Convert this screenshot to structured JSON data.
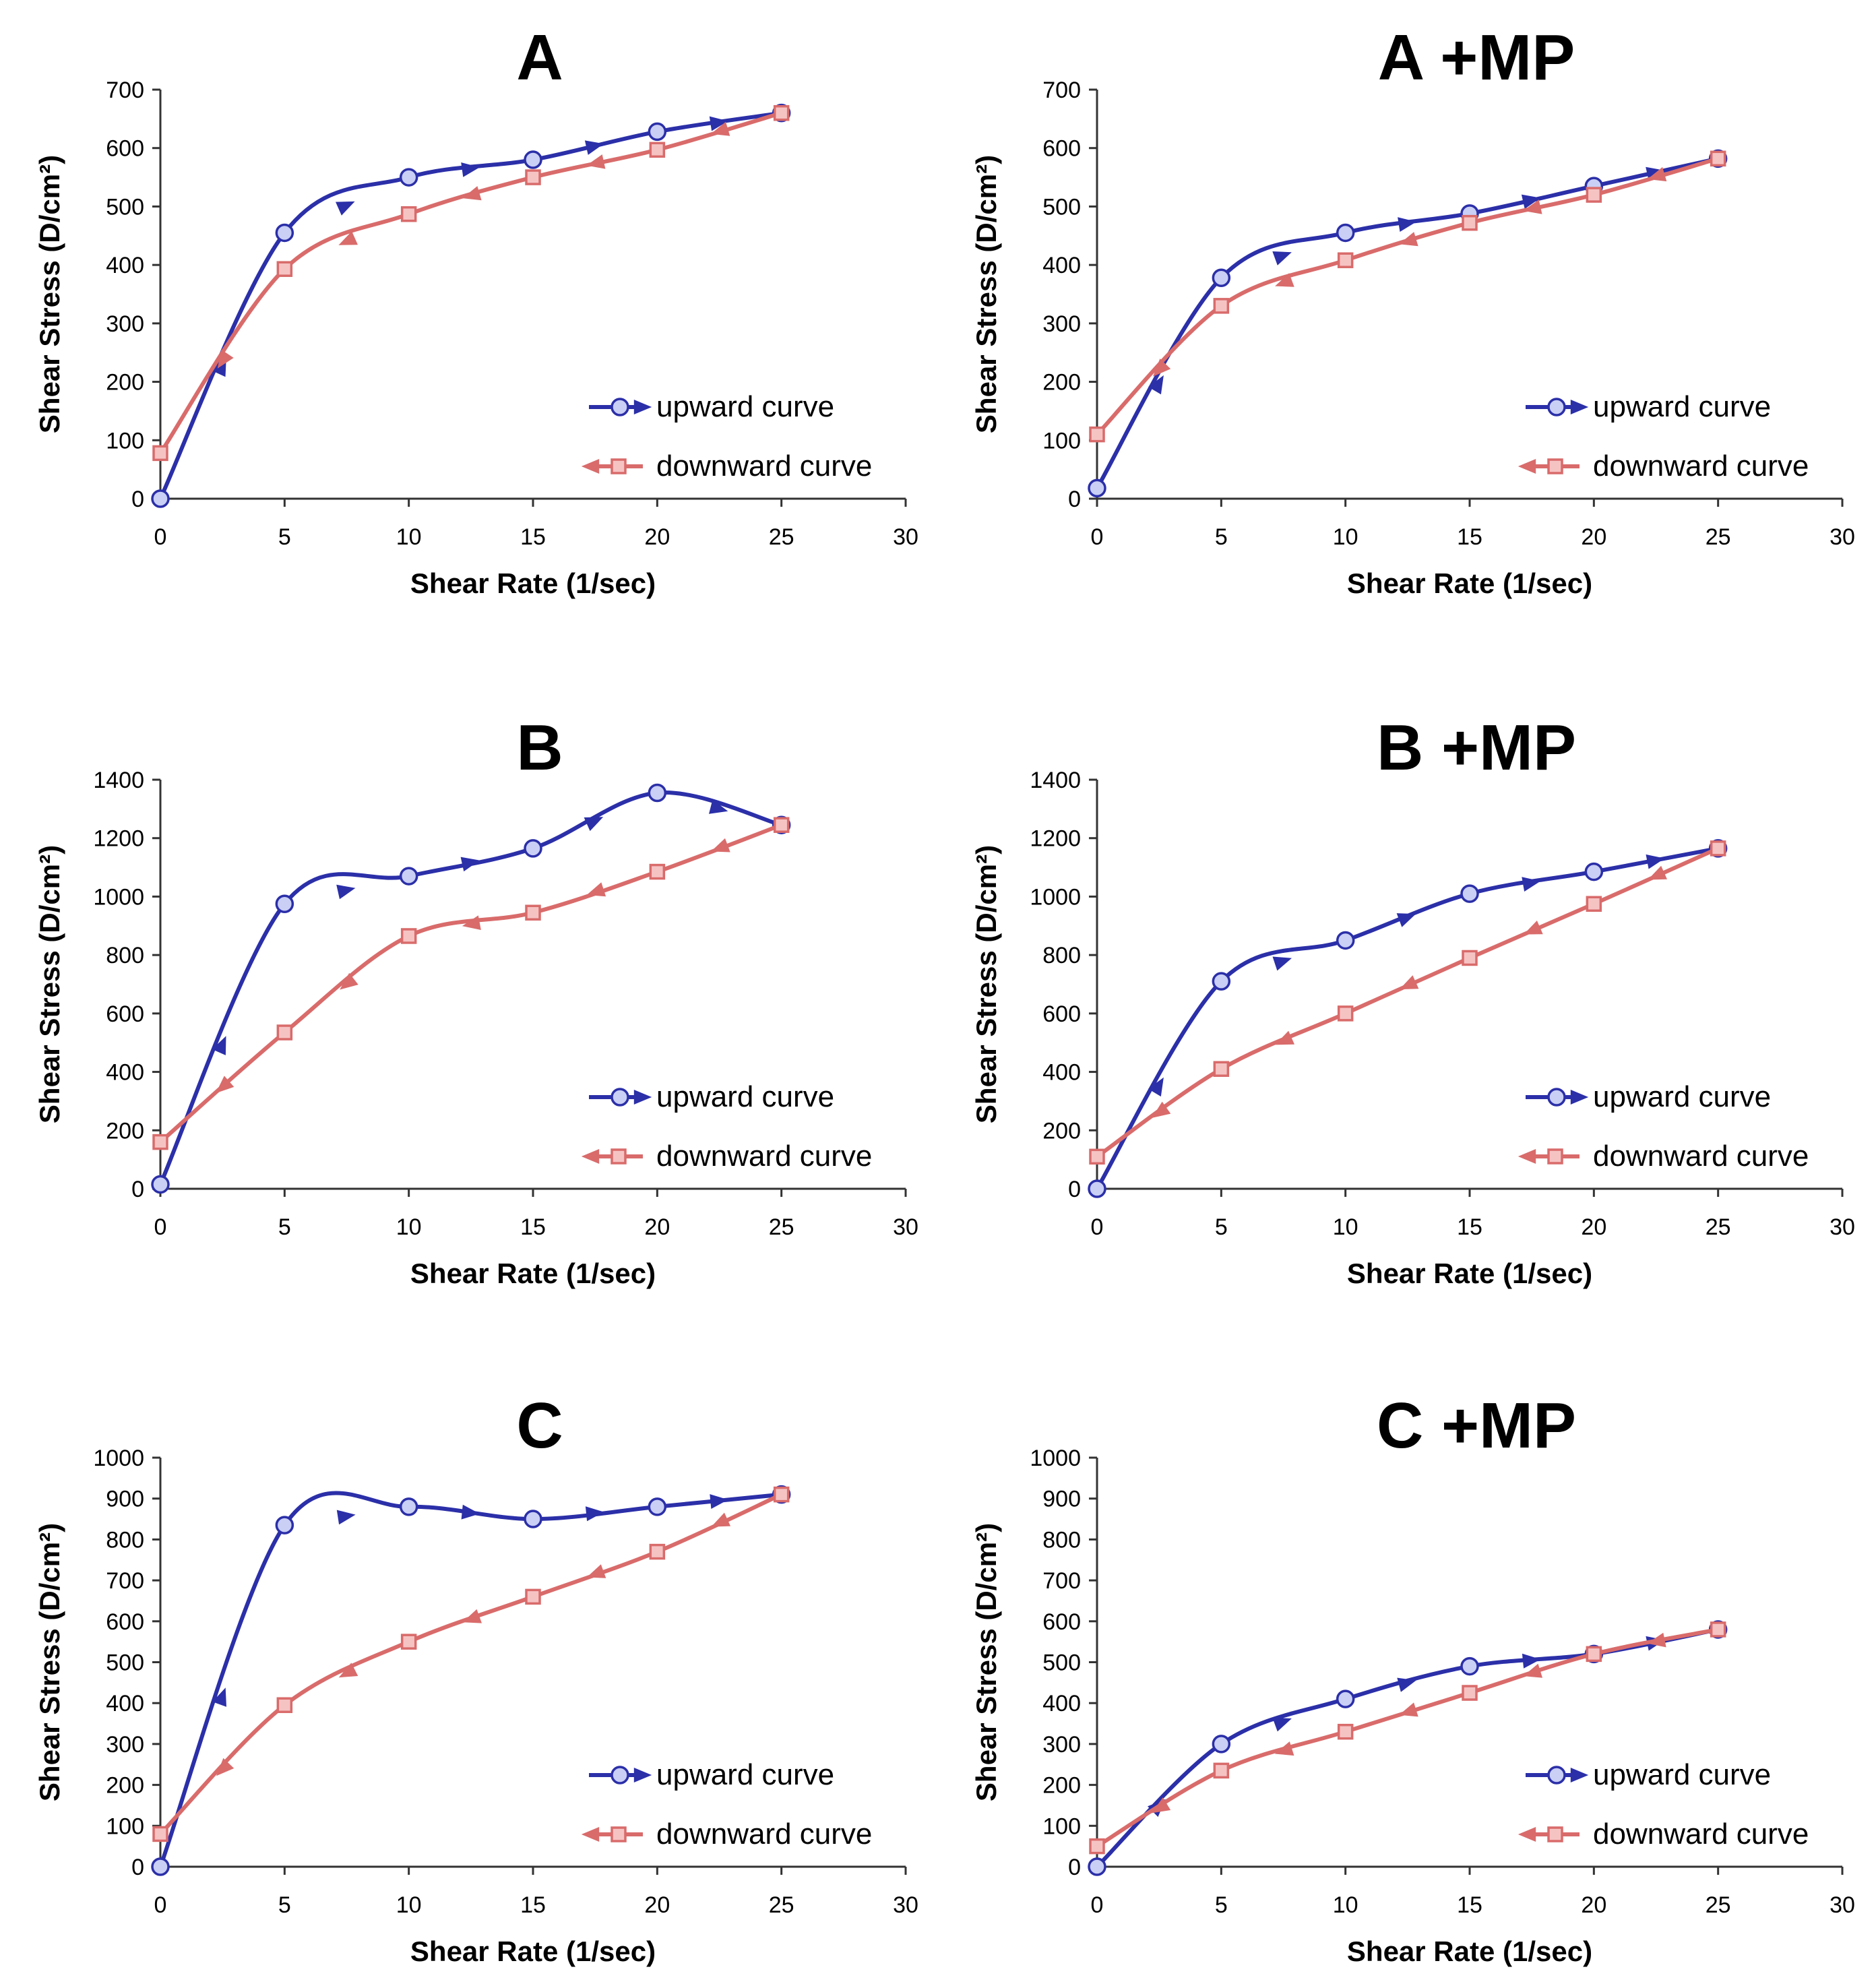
{
  "figure": {
    "colors": {
      "upward": "#2b2fa8",
      "upward_marker_fill": "#c9cff5",
      "downward": "#d96b6b",
      "downward_marker_fill": "#f6c3c3",
      "axis": "#333333",
      "text": "#000000"
    }
  },
  "chart_data": [
    {
      "type": "line",
      "title": "A",
      "xlabel": "Shear Rate (1/sec)",
      "ylabel": "Shear Stress (D/cm²)",
      "xlim": [
        0,
        30
      ],
      "ylim": [
        0,
        700
      ],
      "xticks": [
        "0",
        "5",
        "10",
        "15",
        "20",
        "25",
        "30"
      ],
      "yticks": [
        "0",
        "100",
        "200",
        "300",
        "400",
        "500",
        "600",
        "700"
      ],
      "legend_position": "bottom-right",
      "series": [
        {
          "name": "upward curve",
          "x": [
            0,
            5,
            10,
            15,
            20,
            25
          ],
          "y": [
            0,
            455,
            550,
            580,
            628,
            660
          ]
        },
        {
          "name": "downward curve",
          "x": [
            25,
            20,
            15,
            10,
            5,
            0
          ],
          "y": [
            660,
            597,
            550,
            487,
            393,
            78
          ]
        }
      ]
    },
    {
      "type": "line",
      "title": "A +MP",
      "xlabel": "Shear Rate (1/sec)",
      "ylabel": "Shear Stress (D/cm²)",
      "xlim": [
        0,
        30
      ],
      "ylim": [
        0,
        700
      ],
      "xticks": [
        "0",
        "5",
        "10",
        "15",
        "20",
        "25",
        "30"
      ],
      "yticks": [
        "0",
        "100",
        "200",
        "300",
        "400",
        "500",
        "600",
        "700"
      ],
      "legend_position": "bottom-right",
      "series": [
        {
          "name": "upward curve",
          "x": [
            0,
            5,
            10,
            15,
            20,
            25
          ],
          "y": [
            18,
            378,
            455,
            488,
            535,
            582
          ]
        },
        {
          "name": "downward curve",
          "x": [
            25,
            20,
            15,
            10,
            5,
            0
          ],
          "y": [
            582,
            520,
            472,
            408,
            330,
            110
          ]
        }
      ]
    },
    {
      "type": "line",
      "title": "B",
      "xlabel": "Shear Rate (1/sec)",
      "ylabel": "Shear Stress (D/cm²)",
      "xlim": [
        0,
        30
      ],
      "ylim": [
        0,
        1400
      ],
      "xticks": [
        "0",
        "5",
        "10",
        "15",
        "20",
        "25",
        "30"
      ],
      "yticks": [
        "0",
        "200",
        "400",
        "600",
        "800",
        "1000",
        "1200",
        "1400"
      ],
      "legend_position": "bottom-right",
      "series": [
        {
          "name": "upward curve",
          "x": [
            0,
            5,
            10,
            15,
            20,
            25
          ],
          "y": [
            15,
            975,
            1070,
            1165,
            1355,
            1245
          ]
        },
        {
          "name": "downward curve",
          "x": [
            25,
            20,
            15,
            10,
            5,
            0
          ],
          "y": [
            1245,
            1085,
            945,
            865,
            535,
            160
          ]
        }
      ]
    },
    {
      "type": "line",
      "title": "B +MP",
      "xlabel": "Shear Rate (1/sec)",
      "ylabel": "Shear Stress (D/cm²)",
      "xlim": [
        0,
        30
      ],
      "ylim": [
        0,
        1400
      ],
      "xticks": [
        "0",
        "5",
        "10",
        "15",
        "20",
        "25",
        "30"
      ],
      "yticks": [
        "0",
        "200",
        "400",
        "600",
        "800",
        "1000",
        "1200",
        "1400"
      ],
      "legend_position": "bottom-right",
      "series": [
        {
          "name": "upward curve",
          "x": [
            0,
            5,
            10,
            15,
            20,
            25
          ],
          "y": [
            0,
            710,
            850,
            1010,
            1085,
            1165
          ]
        },
        {
          "name": "downward curve",
          "x": [
            25,
            20,
            15,
            10,
            5,
            0
          ],
          "y": [
            1165,
            975,
            790,
            600,
            410,
            110
          ]
        }
      ]
    },
    {
      "type": "line",
      "title": "C",
      "xlabel": "Shear Rate (1/sec)",
      "ylabel": "Shear Stress (D/cm²)",
      "xlim": [
        0,
        30
      ],
      "ylim": [
        0,
        1000
      ],
      "xticks": [
        "0",
        "5",
        "10",
        "15",
        "20",
        "25",
        "30"
      ],
      "yticks": [
        "0",
        "100",
        "200",
        "300",
        "400",
        "500",
        "600",
        "700",
        "800",
        "900",
        "1000"
      ],
      "legend_position": "bottom-right",
      "series": [
        {
          "name": "upward curve",
          "x": [
            0,
            5,
            10,
            15,
            20,
            25
          ],
          "y": [
            0,
            835,
            880,
            850,
            880,
            910
          ]
        },
        {
          "name": "downward curve",
          "x": [
            25,
            20,
            15,
            10,
            5,
            0
          ],
          "y": [
            910,
            770,
            660,
            550,
            395,
            80
          ]
        }
      ]
    },
    {
      "type": "line",
      "title": "C +MP",
      "xlabel": "Shear Rate (1/sec)",
      "ylabel": "Shear Stress (D/cm²)",
      "xlim": [
        0,
        30
      ],
      "ylim": [
        0,
        1000
      ],
      "xticks": [
        "0",
        "5",
        "10",
        "15",
        "20",
        "25",
        "30"
      ],
      "yticks": [
        "0",
        "100",
        "200",
        "300",
        "400",
        "500",
        "600",
        "700",
        "800",
        "900",
        "1000"
      ],
      "legend_position": "bottom-right",
      "series": [
        {
          "name": "upward curve",
          "x": [
            0,
            5,
            10,
            15,
            20,
            25
          ],
          "y": [
            0,
            300,
            410,
            490,
            520,
            580
          ]
        },
        {
          "name": "downward curve",
          "x": [
            25,
            20,
            15,
            10,
            5,
            0
          ],
          "y": [
            580,
            520,
            425,
            330,
            235,
            50
          ]
        }
      ]
    }
  ]
}
